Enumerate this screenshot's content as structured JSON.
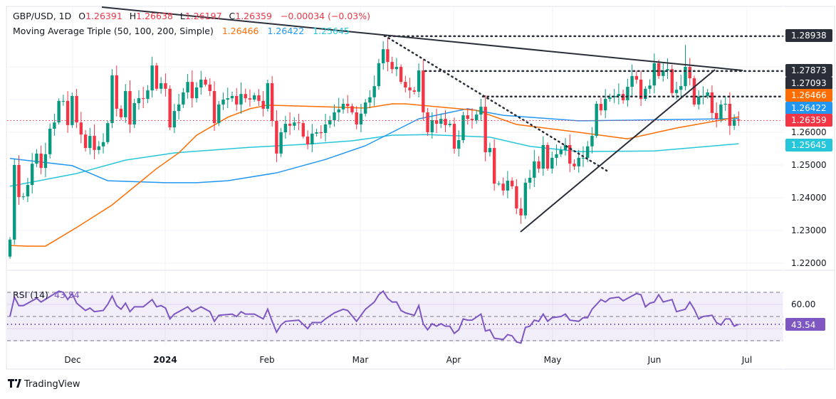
{
  "header": {
    "symbol": "GBP/USD, 1D",
    "o_label": "O",
    "open": "1.26391",
    "h_label": "H",
    "high": "1.26638",
    "l_label": "L",
    "low": "1.26197",
    "c_label": "C",
    "close": "1.26359",
    "change": "−0.00034 (−0.03%)",
    "ma_title": "Moving Average Triple (50, 100, 200, Simple)",
    "ma50": "1.26466",
    "ma100": "1.26422",
    "ma200": "1.25645"
  },
  "rsi_header": {
    "title": "RSI (14)",
    "value": "43.54"
  },
  "colors": {
    "up": "#089981",
    "down": "#f23645",
    "ma50": "#ff6d00",
    "ma100": "#2196f3",
    "ma200": "#26c6da",
    "rsi": "#7e57c2",
    "level": "#2a2e39"
  },
  "price_axis": {
    "ticks": [
      "1.26000",
      "1.25000",
      "1.24000",
      "1.23000",
      "1.22000"
    ],
    "tick_values": [
      1.26,
      1.25,
      1.24,
      1.23,
      1.22
    ],
    "badges": [
      {
        "text": "1.28938",
        "kind": "level"
      },
      {
        "text": "1.27873",
        "kind": "level"
      },
      {
        "text": "1.27093",
        "kind": "level"
      },
      {
        "text": "1.26466",
        "kind": "ma50"
      },
      {
        "text": "1.26422",
        "kind": "ma100"
      },
      {
        "text": "1.26359",
        "kind": "down"
      },
      {
        "text": "1.25645",
        "kind": "ma200"
      }
    ]
  },
  "rsi_axis": {
    "tick": "60.00",
    "badge": "43.54"
  },
  "time_axis": [
    "Dec",
    "2024",
    "Feb",
    "Mar",
    "Apr",
    "May",
    "Jun",
    "Jul"
  ],
  "branding": "TradingView",
  "chart_data": {
    "type": "candlestick",
    "title": "GBP/USD, 1D",
    "first_open": 1.222,
    "closes": [
      1.2272,
      1.25,
      1.2402,
      1.2404,
      1.2439,
      1.2504,
      1.2535,
      1.2491,
      1.2533,
      1.2611,
      1.263,
      1.2696,
      1.2696,
      1.2622,
      1.2711,
      1.263,
      1.2593,
      1.2552,
      1.2589,
      1.2546,
      1.2557,
      1.257,
      1.2628,
      1.2774,
      1.2672,
      1.2646,
      1.2726,
      1.2624,
      1.2689,
      1.2704,
      1.2702,
      1.2728,
      1.2804,
      1.2733,
      1.275,
      1.2733,
      1.2615,
      1.2665,
      1.2685,
      1.2722,
      1.2754,
      1.2704,
      1.2737,
      1.2761,
      1.2746,
      1.2726,
      1.2628,
      1.2685,
      1.27,
      1.2704,
      1.2711,
      1.2685,
      1.2717,
      1.2704,
      1.27,
      1.2713,
      1.2696,
      1.2672,
      1.275,
      1.2635,
      1.2535,
      1.26,
      1.2626,
      1.262,
      1.263,
      1.2628,
      1.2587,
      1.2563,
      1.2596,
      1.26,
      1.2598,
      1.2624,
      1.2637,
      1.2661,
      1.267,
      1.2687,
      1.268,
      1.2661,
      1.2624,
      1.2657,
      1.2691,
      1.2707,
      1.2741,
      1.2811,
      1.2854,
      1.2815,
      1.2793,
      1.28,
      1.2754,
      1.2737,
      1.2728,
      1.2724,
      1.2789,
      1.2661,
      1.26,
      1.2637,
      1.2626,
      1.2641,
      1.2622,
      1.2626,
      1.255,
      1.2576,
      1.2652,
      1.2641,
      1.2637,
      1.2654,
      1.2678,
      1.2539,
      1.2552,
      1.2443,
      1.2443,
      1.2422,
      1.2452,
      1.2435,
      1.2367,
      1.2346,
      1.2446,
      1.2461,
      1.2511,
      1.2489,
      1.2561,
      1.2489,
      1.2522,
      1.2533,
      1.2546,
      1.2561,
      1.2504,
      1.2496,
      1.2522,
      1.2522,
      1.2557,
      1.2589,
      1.2687,
      1.2667,
      1.2702,
      1.2707,
      1.2711,
      1.2717,
      1.2698,
      1.2739,
      1.2772,
      1.2761,
      1.2702,
      1.2733,
      1.2743,
      1.2811,
      1.2772,
      1.2789,
      1.2793,
      1.272,
      1.273,
      1.2741,
      1.28,
      1.2765,
      1.2685,
      1.2709,
      1.2711,
      1.2722,
      1.2659,
      1.2641,
      1.2685,
      1.2687,
      1.262,
      1.2639,
      1.26359
    ],
    "last_candle": {
      "open": 1.26391,
      "high": 1.26638,
      "low": 1.26197,
      "close": 1.26359
    },
    "ma50": [
      [
        0,
        1.2254
      ],
      [
        4,
        1.2252
      ],
      [
        8,
        1.2252
      ],
      [
        15,
        1.2309
      ],
      [
        23,
        1.2378
      ],
      [
        33,
        1.2489
      ],
      [
        38,
        1.2537
      ],
      [
        42,
        1.2591
      ],
      [
        49,
        1.2646
      ],
      [
        54,
        1.2672
      ],
      [
        58,
        1.2683
      ],
      [
        71,
        1.2678
      ],
      [
        80,
        1.2674
      ],
      [
        86,
        1.2687
      ],
      [
        89,
        1.2687
      ],
      [
        105,
        1.2667
      ],
      [
        114,
        1.2624
      ],
      [
        128,
        1.26
      ],
      [
        139,
        1.258
      ],
      [
        150,
        1.2613
      ],
      [
        164,
        1.2647
      ]
    ],
    "ma100": [
      [
        0,
        1.252
      ],
      [
        14,
        1.2498
      ],
      [
        22,
        1.2452
      ],
      [
        35,
        1.2446
      ],
      [
        42,
        1.2446
      ],
      [
        49,
        1.2452
      ],
      [
        60,
        1.2476
      ],
      [
        71,
        1.2517
      ],
      [
        80,
        1.2559
      ],
      [
        86,
        1.26
      ],
      [
        92,
        1.2641
      ],
      [
        103,
        1.2672
      ],
      [
        111,
        1.2652
      ],
      [
        128,
        1.2635
      ],
      [
        139,
        1.2637
      ],
      [
        164,
        1.2642
      ]
    ],
    "ma200": [
      [
        0,
        1.2435
      ],
      [
        15,
        1.2474
      ],
      [
        26,
        1.2515
      ],
      [
        37,
        1.2537
      ],
      [
        54,
        1.2554
      ],
      [
        66,
        1.2563
      ],
      [
        77,
        1.2574
      ],
      [
        86,
        1.2591
      ],
      [
        94,
        1.2593
      ],
      [
        108,
        1.2585
      ],
      [
        117,
        1.2557
      ],
      [
        128,
        1.2541
      ],
      [
        145,
        1.2543
      ],
      [
        164,
        1.2565
      ]
    ],
    "levels": [
      1.28938,
      1.27873,
      1.27093
    ],
    "current_price": 1.26359,
    "rsi": [
      [
        0,
        50
      ],
      [
        1,
        66
      ],
      [
        2,
        59
      ],
      [
        3,
        59
      ],
      [
        6,
        65
      ],
      [
        7,
        62
      ],
      [
        11,
        71
      ],
      [
        12,
        70
      ],
      [
        13,
        64
      ],
      [
        14,
        69
      ],
      [
        15,
        61
      ],
      [
        17,
        55
      ],
      [
        18,
        57
      ],
      [
        19,
        54
      ],
      [
        21,
        55
      ],
      [
        22,
        60
      ],
      [
        23,
        67
      ],
      [
        24,
        59
      ],
      [
        25,
        56
      ],
      [
        26,
        61
      ],
      [
        27,
        54
      ],
      [
        28,
        58
      ],
      [
        30,
        58
      ],
      [
        32,
        64
      ],
      [
        33,
        58
      ],
      [
        34,
        59
      ],
      [
        35,
        57
      ],
      [
        36,
        48
      ],
      [
        37,
        52
      ],
      [
        38,
        54
      ],
      [
        40,
        58
      ],
      [
        41,
        54
      ],
      [
        43,
        58
      ],
      [
        45,
        54
      ],
      [
        46,
        46
      ],
      [
        47,
        51
      ],
      [
        50,
        52
      ],
      [
        51,
        50
      ],
      [
        52,
        54
      ],
      [
        53,
        52
      ],
      [
        55,
        52
      ],
      [
        57,
        48
      ],
      [
        58,
        56
      ],
      [
        59,
        46
      ],
      [
        60,
        37
      ],
      [
        61,
        43
      ],
      [
        62,
        46
      ],
      [
        65,
        47
      ],
      [
        67,
        40
      ],
      [
        68,
        45
      ],
      [
        70,
        45
      ],
      [
        71,
        48
      ],
      [
        73,
        53
      ],
      [
        75,
        56
      ],
      [
        76,
        55
      ],
      [
        78,
        46
      ],
      [
        80,
        56
      ],
      [
        82,
        62
      ],
      [
        83,
        68
      ],
      [
        84,
        71
      ],
      [
        85,
        65
      ],
      [
        86,
        62
      ],
      [
        87,
        62
      ],
      [
        88,
        55
      ],
      [
        89,
        53
      ],
      [
        91,
        51
      ],
      [
        92,
        59
      ],
      [
        93,
        44
      ],
      [
        94,
        39
      ],
      [
        95,
        44
      ],
      [
        96,
        42
      ],
      [
        97,
        44
      ],
      [
        98,
        42
      ],
      [
        99,
        42
      ],
      [
        100,
        36
      ],
      [
        101,
        39
      ],
      [
        102,
        48
      ],
      [
        103,
        47
      ],
      [
        104,
        47
      ],
      [
        106,
        52
      ],
      [
        107,
        38
      ],
      [
        108,
        39
      ],
      [
        109,
        32
      ],
      [
        111,
        31
      ],
      [
        112,
        35
      ],
      [
        113,
        34
      ],
      [
        114,
        29
      ],
      [
        115,
        28
      ],
      [
        116,
        41
      ],
      [
        117,
        42
      ],
      [
        118,
        47
      ],
      [
        119,
        46
      ],
      [
        120,
        52
      ],
      [
        121,
        46
      ],
      [
        122,
        49
      ],
      [
        124,
        50
      ],
      [
        125,
        52
      ],
      [
        126,
        47
      ],
      [
        128,
        46
      ],
      [
        129,
        49
      ],
      [
        130,
        49
      ],
      [
        131,
        56
      ],
      [
        133,
        64
      ],
      [
        134,
        62
      ],
      [
        135,
        65
      ],
      [
        137,
        66
      ],
      [
        138,
        63
      ],
      [
        141,
        69
      ],
      [
        142,
        68
      ],
      [
        143,
        58
      ],
      [
        144,
        61
      ],
      [
        145,
        62
      ],
      [
        146,
        68
      ],
      [
        147,
        62
      ],
      [
        149,
        64
      ],
      [
        150,
        54
      ],
      [
        152,
        56
      ],
      [
        153,
        62
      ],
      [
        154,
        56
      ],
      [
        155,
        48
      ],
      [
        156,
        50
      ],
      [
        158,
        51
      ],
      [
        159,
        45
      ],
      [
        160,
        43
      ],
      [
        161,
        48
      ],
      [
        162,
        48
      ],
      [
        163,
        42
      ],
      [
        164,
        43.54
      ]
    ],
    "rsi_levels": [
      70,
      50,
      30
    ],
    "ylim": [
      1.216,
      1.296
    ]
  }
}
